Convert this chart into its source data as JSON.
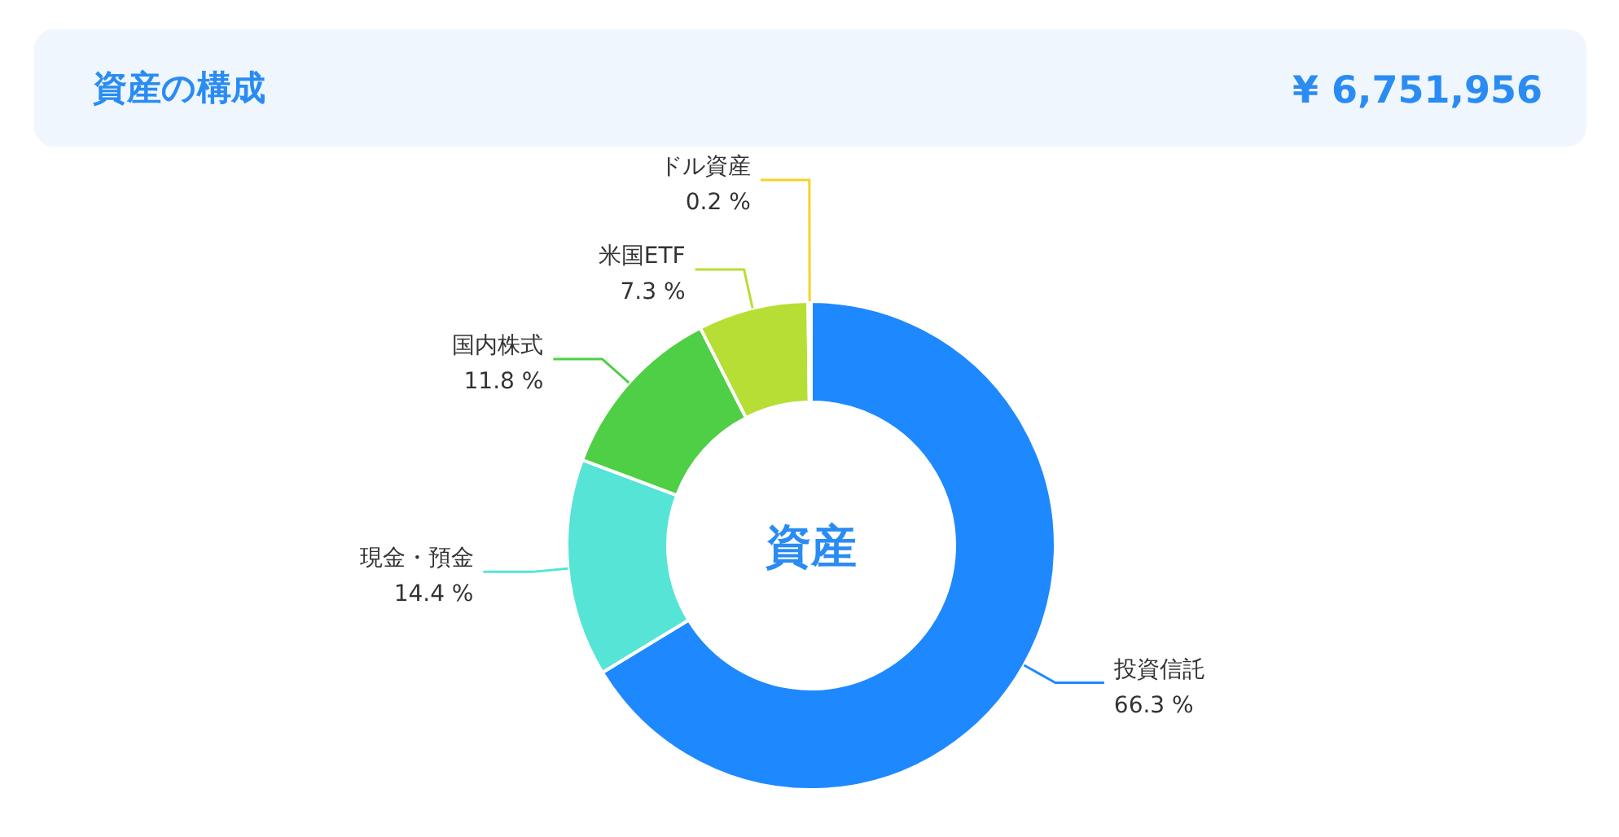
{
  "chart_data": {
    "type": "donut",
    "title": "資産の構成",
    "subtitle": "¥ 6,751,956",
    "annotations": [
      "資産"
    ],
    "categories": [
      "投資信託",
      "現金・預金",
      "国内株式",
      "米国ETF",
      "ドル資産"
    ],
    "values": [
      66.3,
      14.4,
      11.8,
      7.3,
      0.2
    ],
    "value_labels": [
      "66.3 %",
      "14.4 %",
      "11.8 %",
      "7.3 %",
      "0.2 %"
    ],
    "colors": [
      "#1e88ff",
      "#56e4d6",
      "#4fcf45",
      "#b7de34",
      "#f7d22a"
    ],
    "legend": false
  }
}
